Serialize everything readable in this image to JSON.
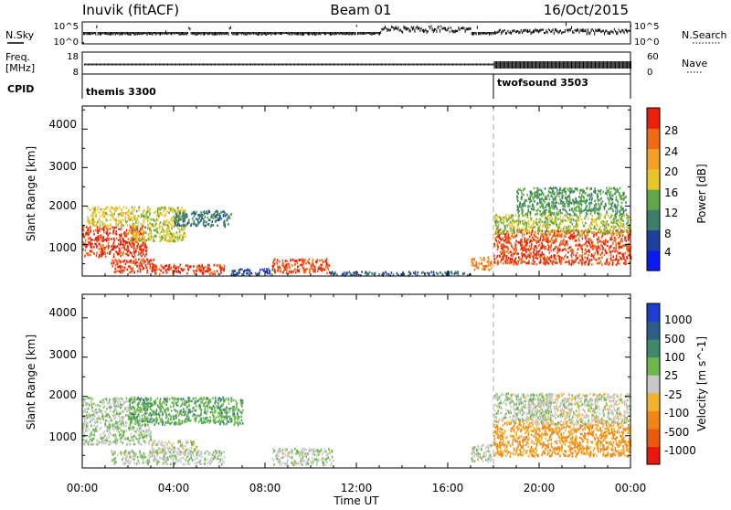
{
  "header": {
    "station": "Inuvik (fitACF)",
    "beam": "Beam 01",
    "date": "16/Oct/2015"
  },
  "strips": {
    "nsky_label": "N.Sky",
    "nsky_ticks": [
      "10^5",
      "10^0"
    ],
    "nsearch_label": "N.Search",
    "nsearch_ticks": [
      "10^5",
      "10^0"
    ],
    "freq_label_top": "Freq.",
    "freq_label_unit": "[MHz]",
    "freq_ticks": [
      "18",
      "8"
    ],
    "nave_label": "Nave",
    "nave_ticks": [
      "60",
      "0"
    ],
    "cpid_label": "CPID",
    "cpid_modes": [
      {
        "name": "themis 3300",
        "start_hour": 0
      },
      {
        "name": "twofsound 3503",
        "start_hour": 18
      }
    ]
  },
  "axes": {
    "ylabel": "Slant Range [km]",
    "xlabel": "Time UT",
    "x_ticks": [
      "00:00",
      "04:00",
      "08:00",
      "12:00",
      "16:00",
      "20:00",
      "00:00"
    ],
    "y_ticks": [
      "1000",
      "2000",
      "3000",
      "4000"
    ]
  },
  "colorbars": {
    "power": {
      "label": "Power [dB]",
      "ticks": [
        "28",
        "24",
        "20",
        "16",
        "12",
        "8",
        "4"
      ],
      "colors": [
        "#0a1af0",
        "#1f3f9e",
        "#3a7d6a",
        "#5ea847",
        "#e8c62b",
        "#f59f24",
        "#ee6a18",
        "#e8200e"
      ]
    },
    "velocity": {
      "label": "Velocity [m s^-1]",
      "ticks": [
        "1000",
        "500",
        "100",
        "25",
        "-25",
        "-100",
        "-500",
        "-1000"
      ],
      "colors": [
        "#1a3fd1",
        "#2b5f8a",
        "#3f8a6a",
        "#6cb84a",
        "#c8c8c8",
        "#f2b22a",
        "#ef8618",
        "#ec5a10",
        "#e8180c"
      ]
    }
  },
  "chart_data": [
    {
      "type": "heatmap",
      "title": "Power",
      "xlabel": "Time UT",
      "ylabel": "Slant Range [km]",
      "xlim": [
        0,
        24
      ],
      "ylim": [
        180,
        4600
      ],
      "colorbar": {
        "label": "Power [dB]",
        "range": [
          0,
          30
        ]
      },
      "patches": [
        {
          "t0": 0.0,
          "t1": 2.8,
          "r0": 700,
          "r1": 1500,
          "value": 27
        },
        {
          "t0": 0.2,
          "t1": 2.0,
          "r0": 1500,
          "r1": 2000,
          "value": 17
        },
        {
          "t0": 2.0,
          "t1": 4.5,
          "r0": 1100,
          "r1": 2000,
          "value": 16
        },
        {
          "t0": 4.0,
          "t1": 6.5,
          "r0": 1500,
          "r1": 1900,
          "value": 9
        },
        {
          "t0": 1.2,
          "t1": 3.2,
          "r0": 300,
          "r1": 650,
          "value": 26
        },
        {
          "t0": 3.0,
          "t1": 6.2,
          "r0": 250,
          "r1": 500,
          "value": 27
        },
        {
          "t0": 8.3,
          "t1": 10.8,
          "r0": 280,
          "r1": 650,
          "value": 26
        },
        {
          "t0": 6.5,
          "t1": 8.3,
          "r0": 220,
          "r1": 400,
          "value": 6
        },
        {
          "t0": 10.8,
          "t1": 17.0,
          "r0": 220,
          "r1": 320,
          "value": 7
        },
        {
          "t0": 17.0,
          "t1": 17.9,
          "r0": 350,
          "r1": 700,
          "value": 22
        },
        {
          "t0": 18.0,
          "t1": 24.0,
          "r0": 500,
          "r1": 1400,
          "value": 26
        },
        {
          "t0": 18.0,
          "t1": 24.0,
          "r0": 1300,
          "r1": 1800,
          "value": 15
        },
        {
          "t0": 19.0,
          "t1": 23.8,
          "r0": 1800,
          "r1": 2500,
          "value": 12
        }
      ]
    },
    {
      "type": "heatmap",
      "title": "Velocity",
      "xlabel": "Time UT",
      "ylabel": "Slant Range [km]",
      "xlim": [
        0,
        24
      ],
      "ylim": [
        180,
        4600
      ],
      "colorbar": {
        "label": "Velocity [m s^-1]",
        "range": [
          -1000,
          1000
        ]
      },
      "patches": [
        {
          "t0": 0.0,
          "t1": 3.0,
          "r0": 800,
          "r1": 2000,
          "value": 80
        },
        {
          "t0": 2.0,
          "t1": 7.0,
          "r0": 1300,
          "r1": 2000,
          "value": 300
        },
        {
          "t0": 1.2,
          "t1": 6.2,
          "r0": 300,
          "r1": 650,
          "value": 60
        },
        {
          "t0": 3.0,
          "t1": 5.0,
          "r0": 600,
          "r1": 900,
          "value": 0
        },
        {
          "t0": 8.3,
          "t1": 11.0,
          "r0": 280,
          "r1": 700,
          "value": 50
        },
        {
          "t0": 17.0,
          "t1": 17.9,
          "r0": 350,
          "r1": 800,
          "value": 60
        },
        {
          "t0": 18.0,
          "t1": 24.0,
          "r0": 500,
          "r1": 1400,
          "value": -350
        },
        {
          "t0": 19.5,
          "t1": 24.0,
          "r0": 1300,
          "r1": 2100,
          "value": 0
        },
        {
          "t0": 18.0,
          "t1": 20.5,
          "r0": 1400,
          "r1": 2100,
          "value": 60
        }
      ]
    }
  ]
}
